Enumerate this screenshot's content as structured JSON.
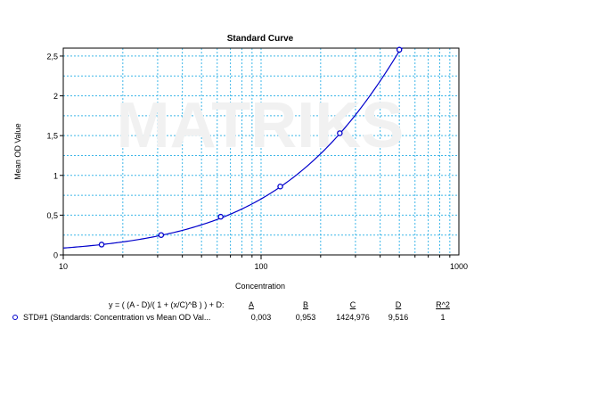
{
  "chart_data": {
    "type": "scatter",
    "title": "Standard Curve",
    "xlabel": "Concentration",
    "ylabel": "Mean OD Value",
    "x_scale": "log",
    "xlim": [
      10,
      1000
    ],
    "ylim": [
      0,
      2.6
    ],
    "x_ticks": [
      "10",
      "100",
      "1000"
    ],
    "y_ticks": [
      "0",
      "0,5",
      "1",
      "1,5",
      "2",
      "2,5"
    ],
    "y_tick_values": [
      0,
      0.5,
      1,
      1.5,
      2,
      2.5
    ],
    "grid": true,
    "watermark": "MATRIKS",
    "series": [
      {
        "name": "STD#1 (Standards: Concentration vs Mean OD Val...",
        "x": [
          15.625,
          31.25,
          62.5,
          125,
          250,
          500
        ],
        "y": [
          0.13,
          0.25,
          0.48,
          0.86,
          1.53,
          2.58
        ],
        "color": "#0000cc",
        "fit": {
          "A": 0.003,
          "B": 0.953,
          "C": 1424.976,
          "D": 9.516
        }
      }
    ]
  },
  "legend": {
    "equation": "y = ( (A - D)/( 1 + (x/C)^B ) ) + D:",
    "headers": [
      "A",
      "B",
      "C",
      "D",
      "R^2"
    ],
    "row_name": "STD#1 (Standards: Concentration vs Mean OD Val...",
    "row_values": [
      "0,003",
      "0,953",
      "1424,976",
      "9,516",
      "1"
    ]
  }
}
